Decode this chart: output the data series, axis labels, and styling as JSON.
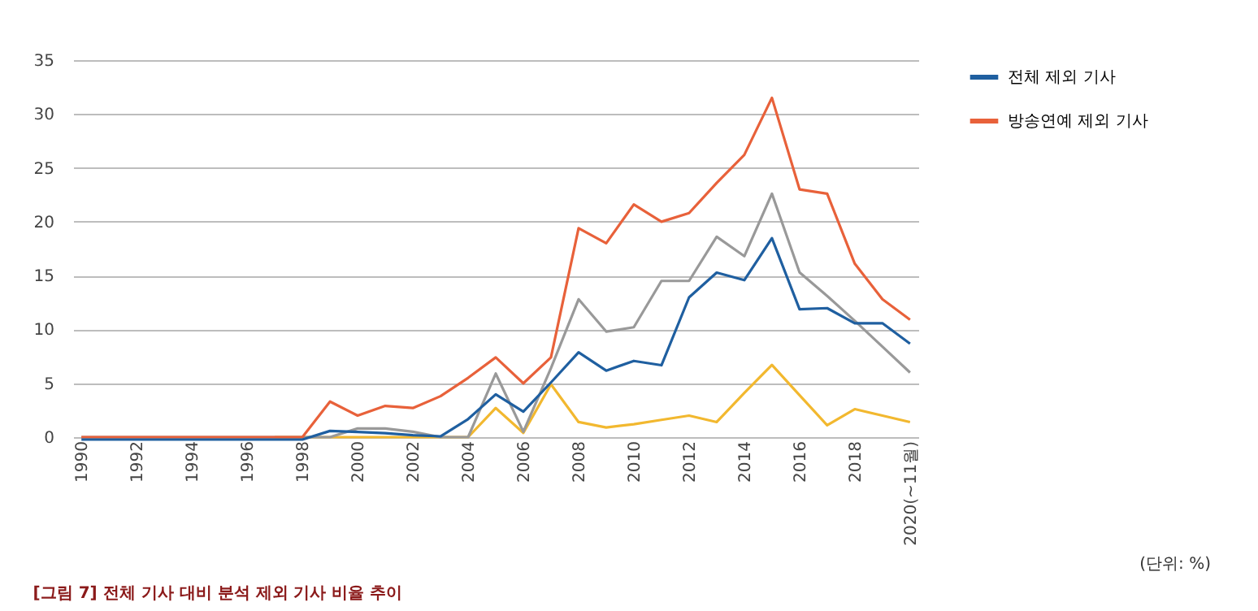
{
  "chart_data": {
    "type": "line",
    "title": "[그림 7] 전체 기사 대비 분석 제외 기사 비율 추이",
    "annotations": [
      "(단위: %)"
    ],
    "categories": [
      "1990",
      null,
      "1992",
      null,
      "1994",
      null,
      "1996",
      null,
      "1998",
      null,
      "2000",
      null,
      "2002",
      null,
      "2004",
      null,
      "2006",
      null,
      "2008",
      null,
      "2010",
      null,
      "2012",
      null,
      "2014",
      null,
      "2016",
      null,
      "2018",
      null,
      "2020(~11월)"
    ],
    "series": [
      {
        "name": "전체 제외 기사",
        "color": "#1f5fa0",
        "values": [
          0,
          0,
          0,
          0,
          0,
          0,
          0,
          0,
          0,
          0.8,
          0.7,
          0.6,
          0.4,
          0.3,
          1.9,
          4.2,
          2.6,
          5.3,
          8.1,
          6.4,
          7.3,
          6.9,
          13.2,
          15.5,
          14.8,
          18.7,
          12.1,
          12.2,
          10.8,
          10.8,
          8.9
        ]
      },
      {
        "name": "방송연예 제외 기사",
        "color": "#e8613a",
        "values": [
          0,
          0,
          0,
          0,
          0,
          0,
          0,
          0,
          0,
          3.3,
          2.0,
          2.9,
          2.7,
          3.8,
          5.5,
          7.4,
          5.0,
          7.4,
          19.4,
          18.0,
          21.6,
          20.0,
          20.8,
          23.6,
          26.2,
          31.5,
          23.0,
          22.6,
          16.1,
          12.8,
          10.9
        ]
      },
      {
        "color": "#999999",
        "values": [
          0,
          0,
          0,
          0,
          0,
          0,
          0,
          0,
          0,
          0,
          0.8,
          0.8,
          0.5,
          0,
          0,
          5.9,
          0.5,
          6.4,
          12.8,
          9.8,
          10.2,
          14.5,
          14.5,
          18.6,
          16.8,
          22.6,
          15.3,
          13.1,
          10.8,
          8.4,
          6.0
        ]
      },
      {
        "color": "#f2b82f",
        "values": [
          null,
          null,
          null,
          null,
          null,
          null,
          null,
          0,
          0,
          0,
          0,
          0,
          0,
          0,
          0,
          2.7,
          0.4,
          4.9,
          1.4,
          0.9,
          1.2,
          1.6,
          2.0,
          1.4,
          4.1,
          6.7,
          3.9,
          1.1,
          2.6,
          2.0,
          1.4
        ]
      }
    ],
    "ylim": [
      0,
      35
    ],
    "yticks": [
      0,
      5,
      10,
      15,
      20,
      25,
      30,
      35
    ],
    "grid": "y",
    "legend": "right",
    "marker": "none",
    "line_style": "solid"
  }
}
